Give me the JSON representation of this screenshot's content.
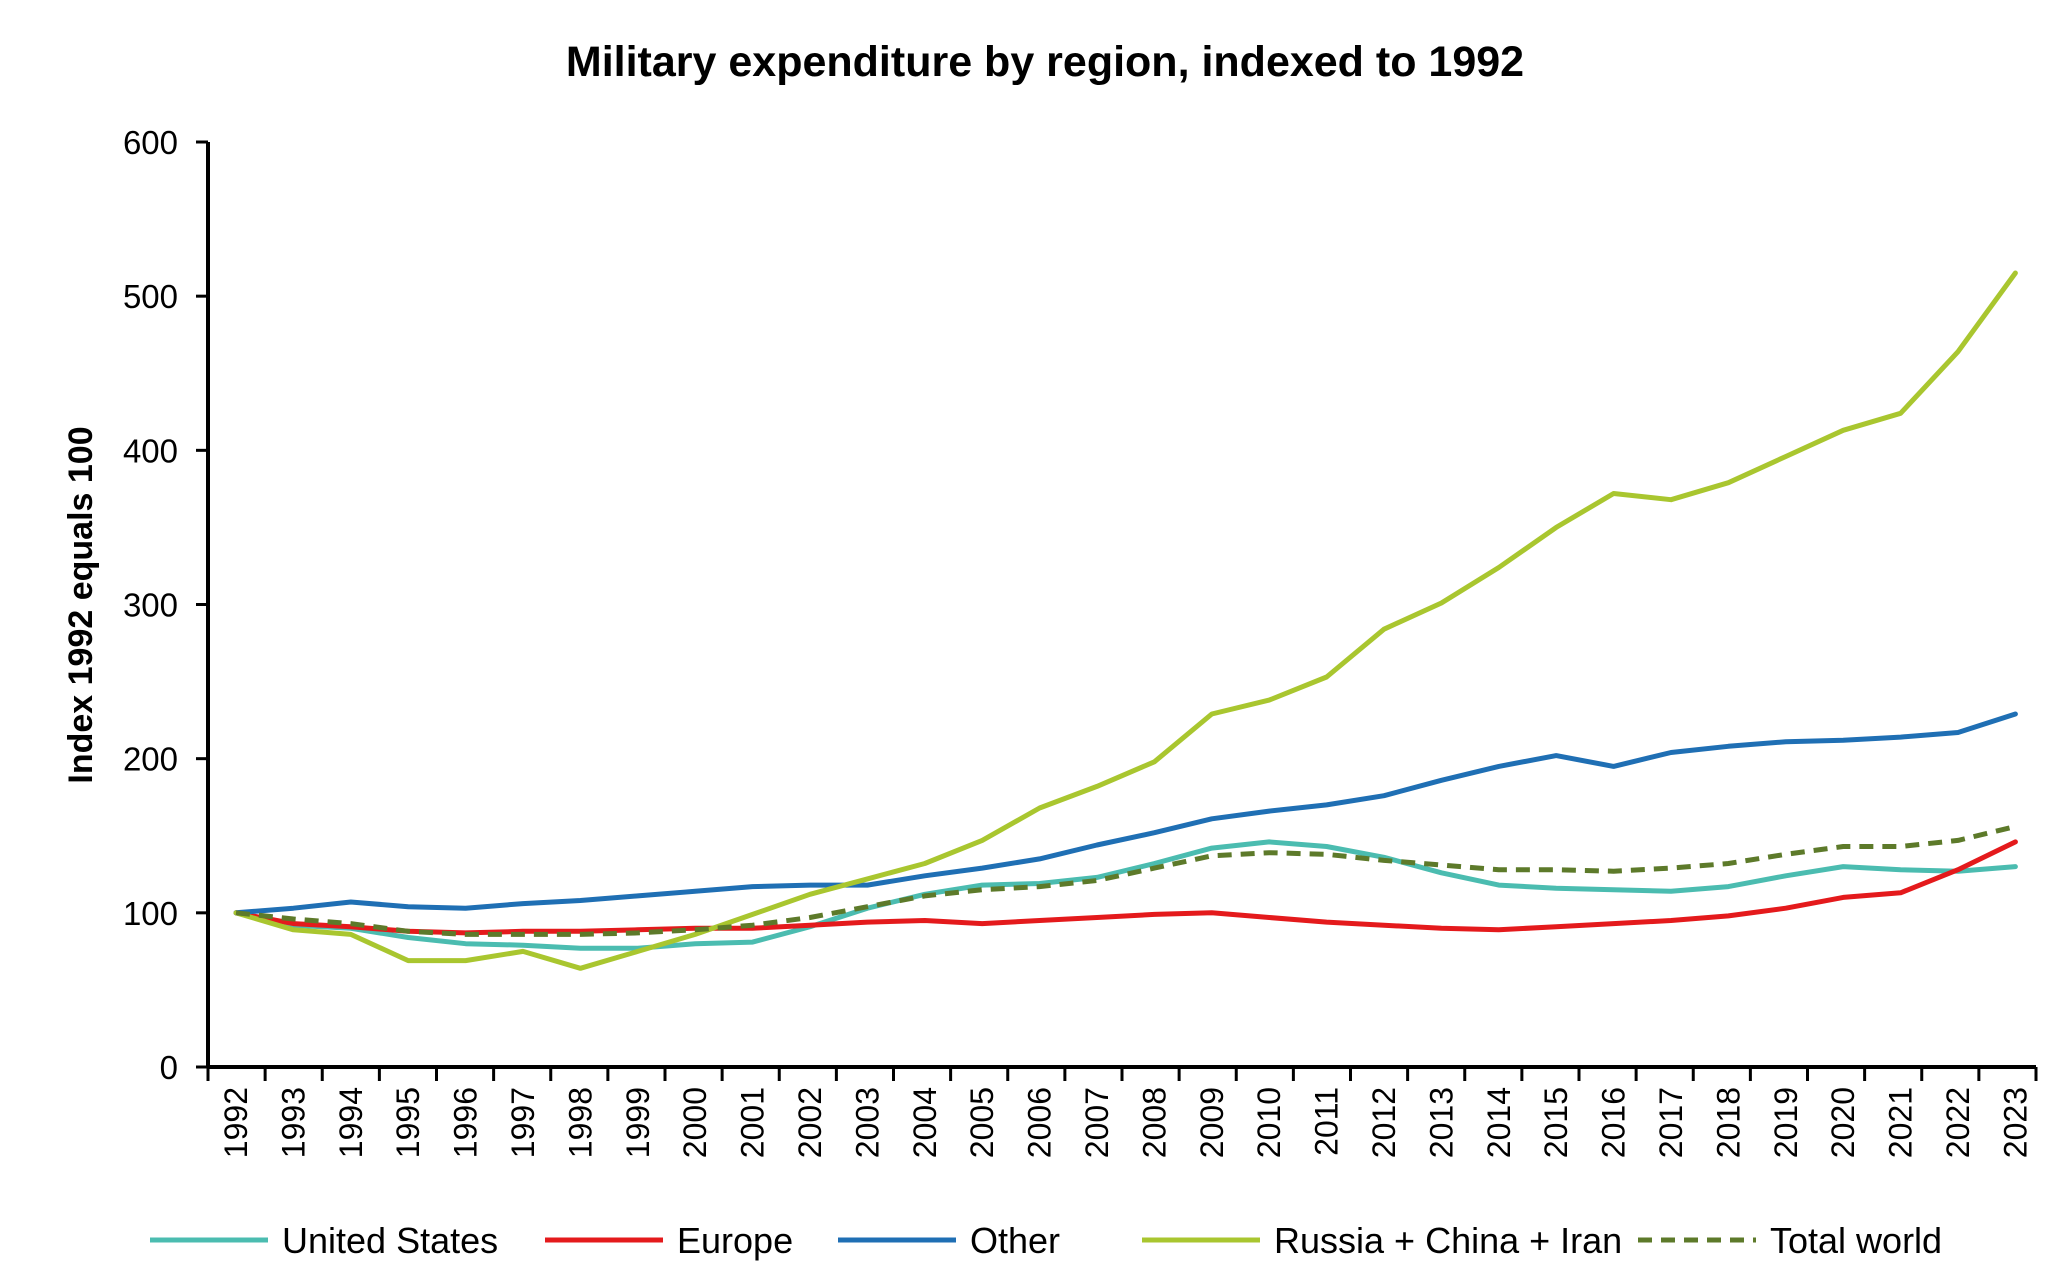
{
  "chart_data": {
    "type": "line",
    "title": "Military expenditure by region, indexed to 1992",
    "xlabel": "",
    "ylabel": "Index 1992 equals 100",
    "ylim": [
      0,
      600
    ],
    "yticks": [
      "0",
      "100",
      "200",
      "300",
      "400",
      "500",
      "600"
    ],
    "grid": false,
    "legend_position": "bottom",
    "categories": [
      "1992",
      "1993",
      "1994",
      "1995",
      "1996",
      "1997",
      "1998",
      "1999",
      "2000",
      "2001",
      "2002",
      "2003",
      "2004",
      "2005",
      "2006",
      "2007",
      "2008",
      "2009",
      "2010",
      "2011",
      "2012",
      "2013",
      "2014",
      "2015",
      "2016",
      "2017",
      "2018",
      "2019",
      "2020",
      "2021",
      "2022",
      "2023"
    ],
    "series": [
      {
        "name": "United States",
        "color": "#4bbcb0",
        "dashed": false,
        "values": [
          100,
          92,
          90,
          84,
          80,
          79,
          77,
          77,
          80,
          81,
          91,
          103,
          112,
          118,
          119,
          123,
          132,
          142,
          146,
          143,
          136,
          126,
          118,
          116,
          115,
          114,
          117,
          124,
          130,
          128,
          127,
          130
        ]
      },
      {
        "name": "Europe",
        "color": "#e41a1c",
        "dashed": false,
        "values": [
          100,
          93,
          91,
          88,
          87,
          88,
          88,
          89,
          90,
          90,
          92,
          94,
          95,
          93,
          95,
          97,
          99,
          100,
          97,
          94,
          92,
          90,
          89,
          91,
          93,
          95,
          98,
          103,
          110,
          113,
          128,
          146
        ]
      },
      {
        "name": "Other",
        "color": "#1f6fb4",
        "dashed": false,
        "values": [
          100,
          103,
          107,
          104,
          103,
          106,
          108,
          111,
          114,
          117,
          118,
          118,
          124,
          129,
          135,
          144,
          152,
          161,
          166,
          170,
          176,
          186,
          195,
          202,
          195,
          204,
          208,
          211,
          212,
          214,
          217,
          229
        ]
      },
      {
        "name": "Russia + China + Iran",
        "color": "#a9c62f",
        "dashed": false,
        "values": [
          100,
          89,
          86,
          69,
          69,
          75,
          64,
          75,
          86,
          99,
          112,
          122,
          132,
          147,
          168,
          182,
          198,
          229,
          238,
          253,
          284,
          301,
          324,
          350,
          372,
          368,
          379,
          396,
          413,
          424,
          464,
          515
        ]
      },
      {
        "name": "Total world",
        "color": "#5d7a2a",
        "dashed": true,
        "values": [
          100,
          96,
          93,
          88,
          86,
          86,
          86,
          87,
          89,
          92,
          97,
          104,
          111,
          115,
          117,
          121,
          129,
          137,
          139,
          138,
          134,
          131,
          128,
          128,
          127,
          129,
          132,
          138,
          143,
          143,
          147,
          156
        ]
      }
    ]
  }
}
